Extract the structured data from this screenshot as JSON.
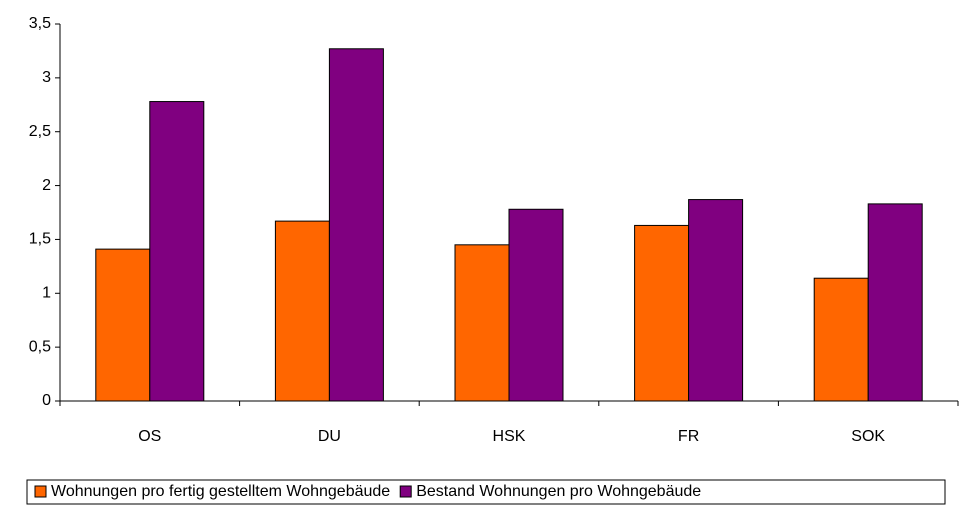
{
  "chart_data": {
    "type": "bar",
    "categories": [
      "OS",
      "DU",
      "HSK",
      "FR",
      "SOK"
    ],
    "series": [
      {
        "name": "Wohnungen pro fertig gestelltem Wohngebäude",
        "color": "#ff6600",
        "values": [
          1.41,
          1.67,
          1.45,
          1.63,
          1.14
        ]
      },
      {
        "name": "Bestand Wohnungen pro Wohngebäude",
        "color": "#800080",
        "values": [
          2.78,
          3.27,
          1.78,
          1.87,
          1.83
        ]
      }
    ],
    "ylim": [
      0,
      3.5
    ],
    "yticks": [
      0,
      {
        "value": 0.5,
        "label": "0,5"
      },
      1,
      {
        "value": 1.5,
        "label": "1,5"
      },
      2,
      {
        "value": 2.5,
        "label": "2,5"
      },
      3,
      {
        "value": 3.5,
        "label": "3,5"
      }
    ],
    "grid": false,
    "legend": "bottom"
  }
}
